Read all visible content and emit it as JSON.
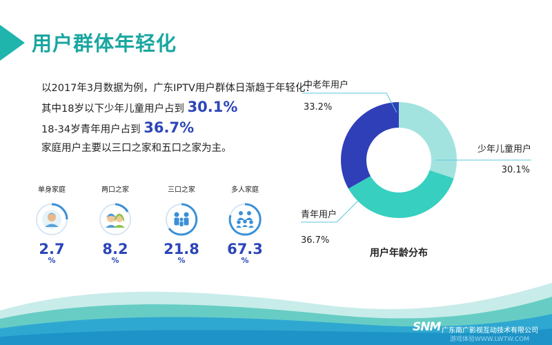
{
  "header": {
    "title": "用户群体年轻化"
  },
  "intro": {
    "line1": "以2017年3月数据为例，广东IPTV用户群体日渐趋于年轻化：",
    "line2_text": "其中18岁以下少年儿童用户占到",
    "line2_value": "30.1%",
    "line3_text": "18-34岁青年用户占到",
    "line3_value": "36.7%",
    "line4": "家庭用户主要以三口之家和五口之家为主。"
  },
  "household": [
    {
      "label": "单身家庭",
      "value": "2.7",
      "unit": "%",
      "icon": "single-person-icon"
    },
    {
      "label": "两口之家",
      "value": "8.2",
      "unit": "%",
      "icon": "couple-icon"
    },
    {
      "label": "三口之家",
      "value": "21.8",
      "unit": "%",
      "icon": "family-of-three-icon"
    },
    {
      "label": "多人家庭",
      "value": "67.3",
      "unit": "%",
      "icon": "multi-person-family-icon"
    }
  ],
  "chart_data": {
    "type": "pie",
    "style": "donut",
    "title": "用户年龄分布",
    "slices": [
      {
        "name": "少年儿童用户",
        "value": 30.1,
        "label": "30.1%",
        "color": "#a3e3df"
      },
      {
        "name": "青年用户",
        "value": 36.7,
        "label": "36.7%",
        "color": "#37cfc0"
      },
      {
        "name": "中老年用户",
        "value": 33.2,
        "label": "33.2%",
        "color": "#2f3fb8"
      }
    ]
  },
  "footer": {
    "logo": "SNM",
    "company": "广东南广影视互动技术有限公司",
    "watermark": "游戏体验WWW.LWTW.COM"
  },
  "colors": {
    "accent": "#1aa6a0",
    "number_blue": "#2c45b8",
    "icon_ring": "#3a8fd6"
  }
}
